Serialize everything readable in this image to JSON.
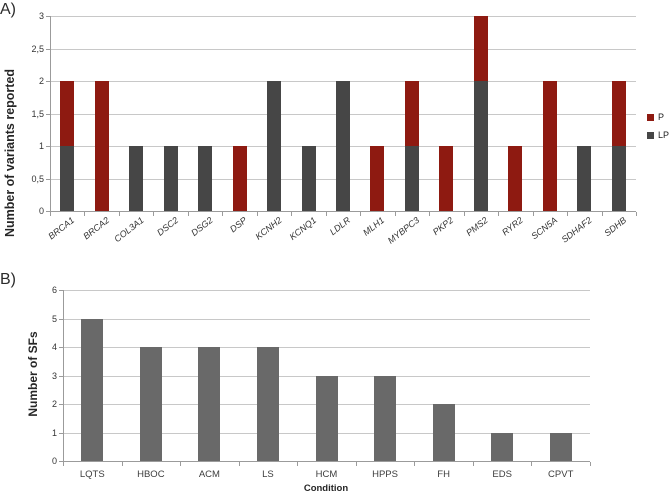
{
  "panels": {
    "a": {
      "label": "A)"
    },
    "b": {
      "label": "B)"
    }
  },
  "colors": {
    "p_red": "#8e1a11",
    "lp_gray": "#464646",
    "sf_gray": "#696969",
    "gridline": "#c8c8c8",
    "axis": "#9b9b9b",
    "tick_text": "#333333"
  },
  "chart_data": [
    {
      "id": "variants-by-gene",
      "type": "bar",
      "stacked": true,
      "title": "",
      "ylabel": "Number of variants reported",
      "xlabel": "",
      "ylim": [
        0,
        3
      ],
      "ytick_values": [
        0,
        0.5,
        1,
        1.5,
        2,
        2.5,
        3
      ],
      "ytick_labels": [
        "0",
        "0,5",
        "1",
        "1,5",
        "2",
        "2,5",
        "3"
      ],
      "grid": true,
      "legend_position": "right",
      "categories": [
        "BRCA1",
        "BRCA2",
        "COL3A1",
        "DSC2",
        "DSG2",
        "DSP",
        "KCNH2",
        "KCNQ1",
        "LDLR",
        "MLH1",
        "MYBPC3",
        "PKP2",
        "PMS2",
        "RYR2",
        "SCN5A",
        "SDHAF2",
        "SDHB"
      ],
      "series": [
        {
          "name": "LP",
          "color": "#464646",
          "values": [
            1,
            0,
            1,
            1,
            1,
            0,
            2,
            1,
            2,
            0,
            1,
            0,
            2,
            0,
            0,
            1,
            1
          ]
        },
        {
          "name": "P",
          "color": "#8e1a11",
          "values": [
            1,
            2,
            0,
            0,
            0,
            1,
            0,
            0,
            0,
            1,
            1,
            1,
            1,
            1,
            2,
            0,
            1
          ]
        }
      ]
    },
    {
      "id": "sfs-by-condition",
      "type": "bar",
      "stacked": false,
      "title": "",
      "ylabel": "Number of SFs",
      "xlabel": "Condition",
      "ylim": [
        0,
        6
      ],
      "ytick_values": [
        0,
        1,
        2,
        3,
        4,
        5,
        6
      ],
      "ytick_labels": [
        "0",
        "1",
        "2",
        "3",
        "4",
        "5",
        "6"
      ],
      "grid": true,
      "legend_position": "none",
      "categories": [
        "LQTS",
        "HBOC",
        "ACM",
        "LS",
        "HCM",
        "HPPS",
        "FH",
        "EDS",
        "CPVT"
      ],
      "series": [
        {
          "name": "SFs",
          "color": "#696969",
          "values": [
            5,
            4,
            4,
            4,
            3,
            3,
            2,
            1,
            1
          ]
        }
      ]
    }
  ]
}
